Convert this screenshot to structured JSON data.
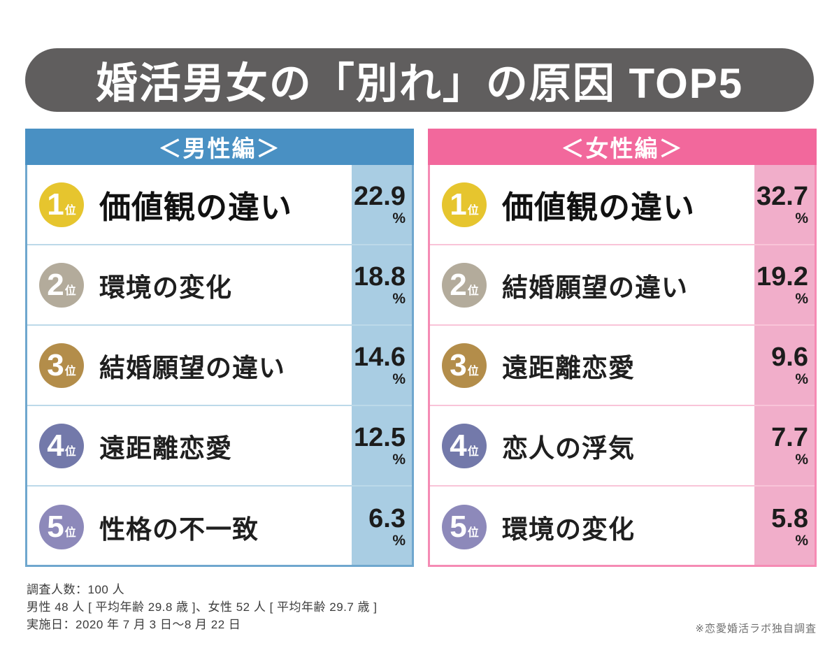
{
  "title": "婚活男女の「別れ」の原因 TOP5",
  "banner_color": "#605e5e",
  "panels": [
    {
      "header": "＜男性編＞",
      "theme": {
        "header": "#4990c3",
        "light": "#a9cde3",
        "border": "#6fa7ce",
        "separator": "#bcd9e9"
      },
      "rows": [
        {
          "rank": "1",
          "rank_suffix": "位",
          "label": "価値観の違い",
          "value": "22.9",
          "unit": "%",
          "badge_color": "#e6c52e"
        },
        {
          "rank": "2",
          "rank_suffix": "位",
          "label": "環境の変化",
          "value": "18.8",
          "unit": "%",
          "badge_color": "#b3ab9b"
        },
        {
          "rank": "3",
          "rank_suffix": "位",
          "label": "結婚願望の違い",
          "value": "14.6",
          "unit": "%",
          "badge_color": "#b38d4a"
        },
        {
          "rank": "4",
          "rank_suffix": "位",
          "label": "遠距離恋愛",
          "value": "12.5",
          "unit": "%",
          "badge_color": "#7379aa"
        },
        {
          "rank": "5",
          "rank_suffix": "位",
          "label": "性格の不一致",
          "value": "6.3",
          "unit": "%",
          "badge_color": "#8d89ba"
        }
      ]
    },
    {
      "header": "＜女性編＞",
      "theme": {
        "header": "#f2689c",
        "light": "#f1aeca",
        "border": "#f58bb4",
        "separator": "#f9c4d8"
      },
      "rows": [
        {
          "rank": "1",
          "rank_suffix": "位",
          "label": "価値観の違い",
          "value": "32.7",
          "unit": "%",
          "badge_color": "#e6c52e"
        },
        {
          "rank": "2",
          "rank_suffix": "位",
          "label": "結婚願望の違い",
          "value": "19.2",
          "unit": "%",
          "badge_color": "#b3ab9b"
        },
        {
          "rank": "3",
          "rank_suffix": "位",
          "label": "遠距離恋愛",
          "value": "9.6",
          "unit": "%",
          "badge_color": "#b38d4a"
        },
        {
          "rank": "4",
          "rank_suffix": "位",
          "label": "恋人の浮気",
          "value": "7.7",
          "unit": "%",
          "badge_color": "#7379aa"
        },
        {
          "rank": "5",
          "rank_suffix": "位",
          "label": "環境の変化",
          "value": "5.8",
          "unit": "%",
          "badge_color": "#8d89ba"
        }
      ]
    }
  ],
  "footer": {
    "lines": [
      "調査人数：100 人",
      "男性 48 人 [ 平均年齢 29.8 歳 ]、女性 52 人 [ 平均年齢 29.7 歳 ]",
      "実施日：2020 年 7 月 3 日～8 月 22 日"
    ],
    "note": "※恋愛婚活ラボ独自調査"
  },
  "chart_data": {
    "type": "table",
    "title": "婚活男女の「別れ」の原因 TOP5",
    "series": [
      {
        "name": "男性編",
        "categories": [
          "価値観の違い",
          "環境の変化",
          "結婚願望の違い",
          "遠距離恋愛",
          "性格の不一致"
        ],
        "values": [
          22.9,
          18.8,
          14.6,
          12.5,
          6.3
        ],
        "unit": "%"
      },
      {
        "name": "女性編",
        "categories": [
          "価値観の違い",
          "結婚願望の違い",
          "遠距離恋愛",
          "恋人の浮気",
          "環境の変化"
        ],
        "values": [
          32.7,
          19.2,
          9.6,
          7.7,
          5.8
        ],
        "unit": "%"
      }
    ],
    "annotations": [
      "調査人数：100 人",
      "男性 48 人 [ 平均年齢 29.8 歳 ]、女性 52 人 [ 平均年齢 29.7 歳 ]",
      "実施日：2020 年 7 月 3 日～8 月 22 日",
      "※恋愛婚活ラボ独自調査"
    ]
  }
}
